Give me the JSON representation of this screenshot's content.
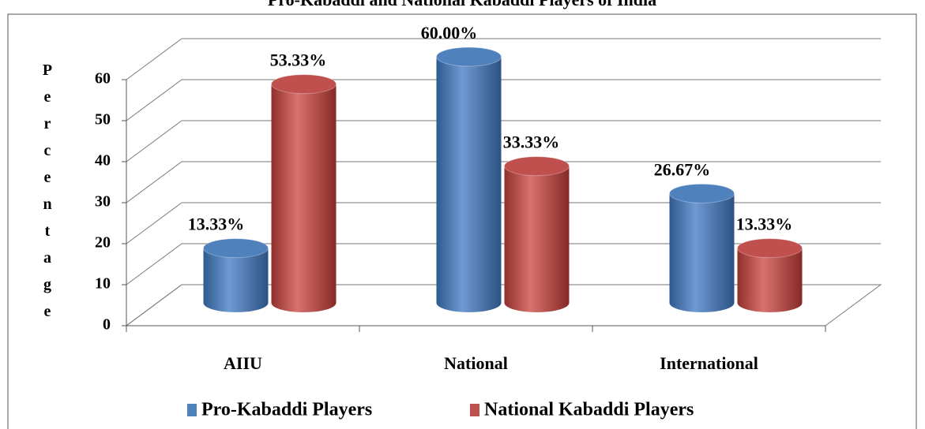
{
  "chart_data": {
    "type": "bar3d",
    "title": "Pro-Kabaddi and National Kabaddi Players of India",
    "y_label": "Percentage",
    "categories": [
      "AIIU",
      "National",
      "International"
    ],
    "series": [
      {
        "name": "Pro-Kabaddi Players",
        "color": "#4f81bd",
        "values": [
          13.33,
          60.0,
          26.67
        ],
        "value_labels": [
          "13.33%",
          "60.00%",
          "26.67%"
        ]
      },
      {
        "name": "National Kabaddi Players",
        "color": "#c0504d",
        "values": [
          53.33,
          33.33,
          13.33
        ],
        "value_labels": [
          "53.33%",
          "33.33%",
          "13.33%"
        ]
      }
    ],
    "ylim": [
      0,
      60
    ],
    "yticks": [
      0,
      10,
      20,
      30,
      40,
      50,
      60
    ],
    "grid": true,
    "legend": "bottom"
  }
}
